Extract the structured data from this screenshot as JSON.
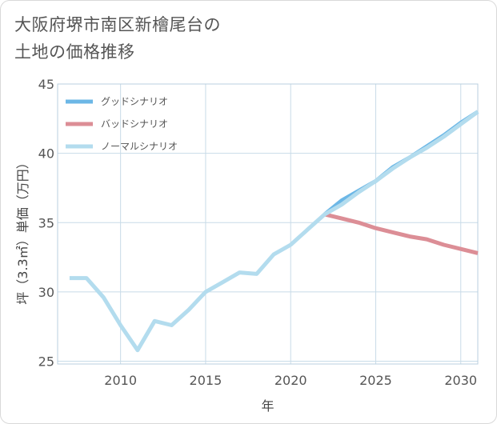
{
  "page": {
    "title": "大阪府堺市南区新檜尾台の\n土地の価格推移"
  },
  "colors": {
    "good": "#6cb7e6",
    "bad": "#dc8e96",
    "normal": "#b3dcee",
    "grid": "#c8dbe8",
    "plot_border": "#b9cfdf"
  },
  "chart_data": {
    "type": "line",
    "title": "大阪府堺市南区新檜尾台の土地の価格推移",
    "xlabel": "年",
    "ylabel": "坪（3.3㎡）単価（万円）",
    "xlim": [
      2006.3,
      2031
    ],
    "ylim": [
      24.8,
      45
    ],
    "x_ticks": [
      2010,
      2015,
      2020,
      2025,
      2030
    ],
    "y_ticks": [
      25,
      30,
      35,
      40,
      45
    ],
    "x_tick_labels": [
      "2010",
      "2015",
      "2020",
      "2025",
      "2030"
    ],
    "y_tick_labels": [
      "25",
      "30",
      "35",
      "40",
      "45"
    ],
    "grid": true,
    "legend_position": "top-left",
    "series": [
      {
        "name": "グッドシナリオ",
        "color_key": "good",
        "x": [
          2022,
          2023,
          2024,
          2025,
          2026,
          2027,
          2028,
          2029,
          2030,
          2031
        ],
        "y": [
          35.6,
          36.6,
          37.3,
          38.0,
          39.0,
          39.7,
          40.5,
          41.3,
          42.2,
          43.0
        ]
      },
      {
        "name": "バッドシナリオ",
        "color_key": "bad",
        "x": [
          2022,
          2023,
          2024,
          2025,
          2026,
          2027,
          2028,
          2029,
          2030,
          2031
        ],
        "y": [
          35.6,
          35.3,
          35.0,
          34.6,
          34.3,
          34.0,
          33.8,
          33.4,
          33.1,
          32.8
        ]
      },
      {
        "name": "ノーマルシナリオ",
        "color_key": "normal",
        "x": [
          2007,
          2008,
          2009,
          2010,
          2011,
          2012,
          2013,
          2014,
          2015,
          2016,
          2017,
          2018,
          2019,
          2020,
          2021,
          2022,
          2023,
          2024,
          2025,
          2026,
          2027,
          2028,
          2029,
          2030,
          2031
        ],
        "y": [
          31.0,
          31.0,
          29.6,
          27.6,
          25.8,
          27.9,
          27.6,
          28.7,
          30.0,
          30.7,
          31.4,
          31.3,
          32.7,
          33.4,
          34.5,
          35.6,
          36.3,
          37.2,
          38.0,
          38.9,
          39.7,
          40.4,
          41.2,
          42.1,
          43.0
        ]
      }
    ]
  }
}
